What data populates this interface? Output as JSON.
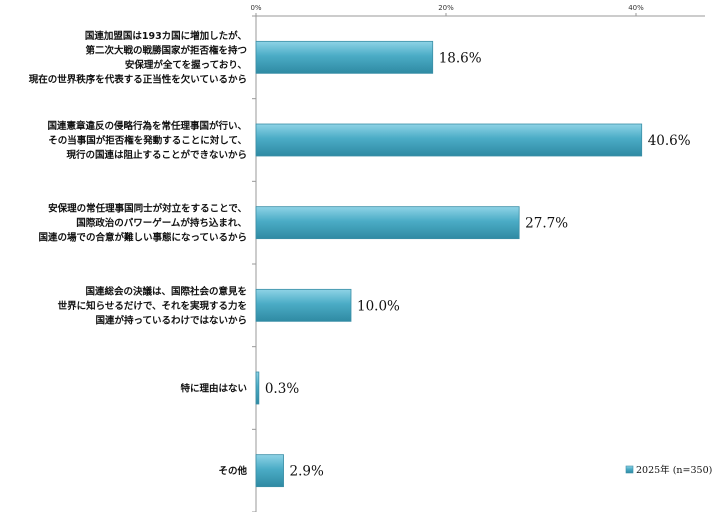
{
  "chart_data": {
    "type": "bar",
    "orientation": "horizontal",
    "categories": [
      [
        "国連加盟国は193カ国に増加したが、",
        "第二次大戦の戦勝国家が拒否権を持つ",
        "安保理が全てを握っており、",
        "現在の世界秩序を代表する正当性を欠いているから"
      ],
      [
        "国連憲章違反の侵略行為を常任理事国が行い、",
        "その当事国が拒否権を発動することに対して、",
        "現行の国連は阻止することができないから"
      ],
      [
        "安保理の常任理事国同士が対立をすることで、",
        "国際政治のパワーゲームが持ち込まれ、",
        "国連の場での合意が難しい事態になっているから"
      ],
      [
        "国連総会の決議は、国際社会の意見を",
        "世界に知らせるだけで、それを実現する力を",
        "国連が持っているわけではないから"
      ],
      [
        "特に理由はない"
      ],
      [
        "その他"
      ]
    ],
    "series": [
      {
        "name": "2025年 (n=350)",
        "values": [
          18.6,
          40.6,
          27.7,
          10.0,
          0.3,
          2.9
        ]
      }
    ],
    "data_labels": [
      "18.6%",
      "40.6%",
      "27.7%",
      "10.0%",
      "0.3%",
      "2.9%"
    ],
    "xlim": [
      0,
      47
    ],
    "xticks": [
      0,
      20,
      40
    ],
    "xtick_labels": [
      "0%",
      "20%",
      "40%"
    ],
    "legend_position": "bottom-right",
    "grid": false,
    "bar_color": "#4bacc6"
  }
}
